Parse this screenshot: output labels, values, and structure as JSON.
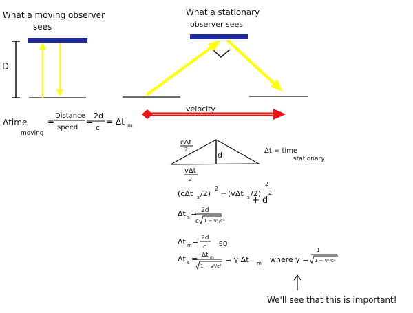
{
  "headings": {
    "moving_line1": "What a moving observer",
    "moving_line2": "sees",
    "stationary_line1": "What a stationary",
    "stationary_line2": "observer sees"
  },
  "labels": {
    "D": "D",
    "velocity": "velocity"
  },
  "eq_moving": {
    "delta_time": "Δtime",
    "moving_sub": "moving",
    "equals1": "=",
    "distance": "Distance",
    "speed": "speed",
    "equals2": "=",
    "num_2d": "2d",
    "den_c": "c",
    "result": "= Δt",
    "result_sub": "m"
  },
  "triangle": {
    "top_num": "cΔt",
    "top_den": "2",
    "d": "d",
    "bottom_num": "vΔt",
    "bottom_den": "2",
    "def_line1": "Δt = time",
    "def_line2": "stationary"
  },
  "equations": {
    "pyth_left": "(cΔt",
    "pyth_left_sub": "s",
    "pyth_left_close": "/2)",
    "pyth_sq1": "2",
    "pyth_eq": "=",
    "pyth_right": "(vΔt",
    "pyth_right_sub": "s",
    "pyth_right_close": "/2)",
    "pyth_sq2": "2",
    "pyth_plus": "+ d",
    "pyth_sq3": "2",
    "ts_lhs": "Δt",
    "ts_lhs_sub": "s",
    "ts_eq": "=",
    "ts_num": "2d",
    "ts_den_c": "c",
    "ts_den_root": "1 − v²/c²",
    "tm_lhs": "Δt",
    "tm_lhs_sub": "m",
    "tm_eq": "=",
    "tm_num": "2d",
    "tm_den": "c",
    "tm_so": "so",
    "final_lhs": "Δt",
    "final_lhs_sub": "s",
    "final_eq": "=",
    "final_num": "Δt",
    "final_num_sub": "m",
    "final_den_root": "1 − v²/c²",
    "final_gamma": "= γ Δt",
    "final_gamma_sub": "m",
    "where": "where γ =",
    "gamma_num": "1",
    "gamma_den_root": "1 − v²/c²"
  },
  "note": {
    "text": "We'll see that this is important!"
  },
  "colors": {
    "mirror": "#1f2a9c",
    "light_ray": "#ffff00",
    "velocity_arrow": "#ee1111",
    "ink": "#111111"
  }
}
